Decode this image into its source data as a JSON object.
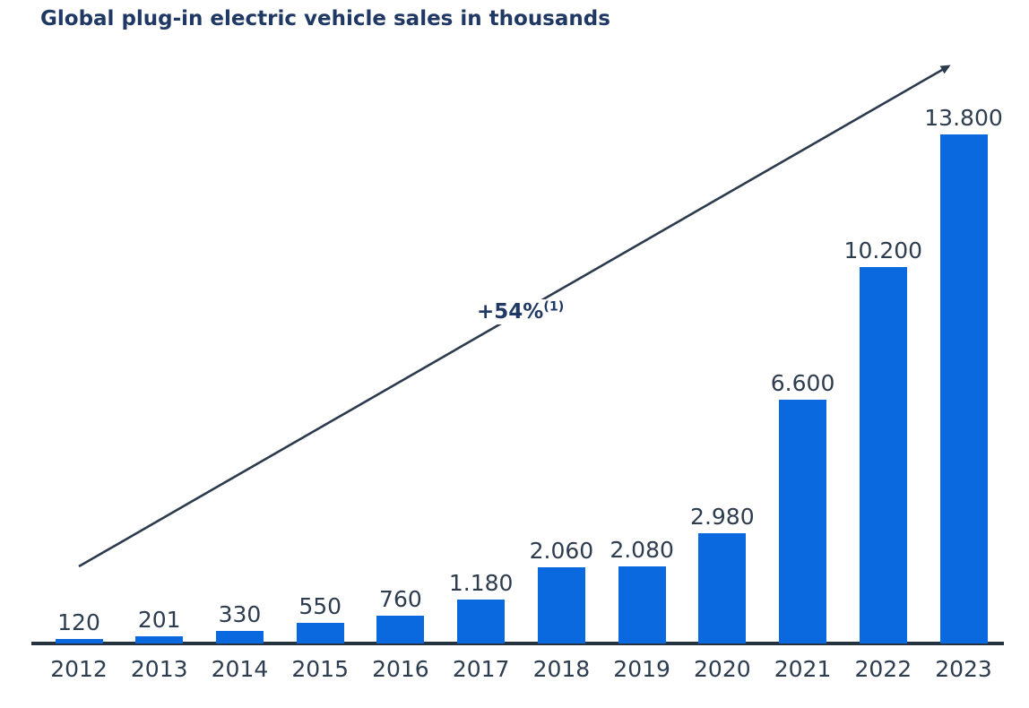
{
  "chart_data": {
    "type": "bar",
    "title": "Global plug-in electric vehicle sales in thousands",
    "unit": "thousands",
    "categories": [
      "2012",
      "2013",
      "2014",
      "2015",
      "2016",
      "2017",
      "2018",
      "2019",
      "2020",
      "2021",
      "2022",
      "2023"
    ],
    "values": [
      120,
      201,
      330,
      550,
      760,
      1180,
      2060,
      2080,
      2980,
      6600,
      10200,
      13800
    ],
    "value_labels": [
      "120",
      "201",
      "330",
      "550",
      "760",
      "1.180",
      "2.060",
      "2.080",
      "2.980",
      "6.600",
      "10.200",
      "13.800"
    ],
    "ylim": [
      0,
      13800
    ],
    "grid": false,
    "legend": false,
    "annotation": {
      "label": "+54%",
      "footnote": "(1)"
    },
    "colors": {
      "bar": "#0b69e0",
      "axis": "#273240",
      "labels": "#2d3c4e",
      "title": "#1f3864",
      "arrow": "#2b3a4d",
      "bg": "#ffffff"
    }
  }
}
